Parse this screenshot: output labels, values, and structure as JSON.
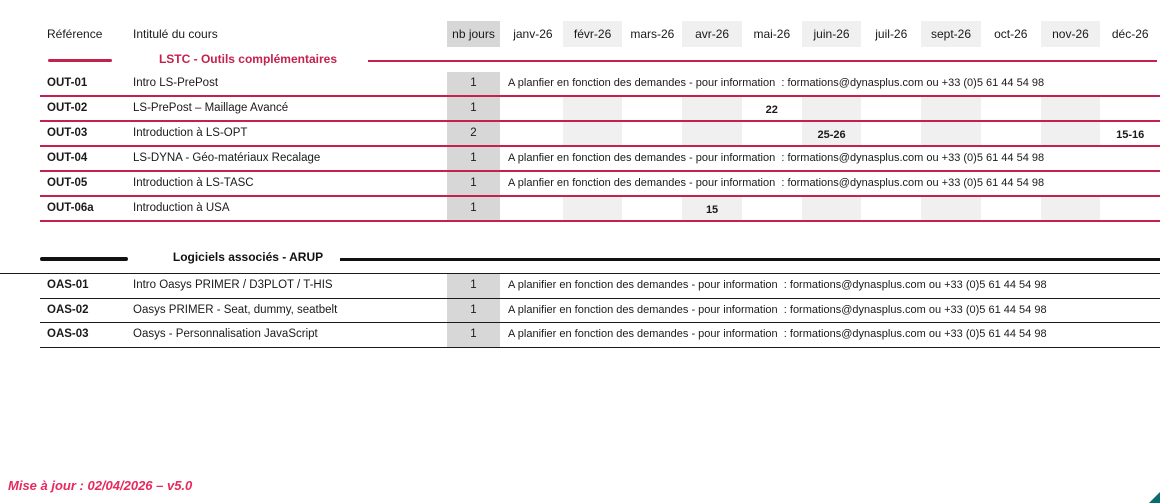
{
  "header": {
    "reference_label": "Référence",
    "course_label": "Intitulé du cours",
    "days_label": "nb jours",
    "months": [
      "janv-26",
      "févr-26",
      "mars-26",
      "avr-26",
      "mai-26",
      "juin-26",
      "juil-26",
      "sept-26",
      "oct-26",
      "nov-26",
      "déc-26"
    ]
  },
  "sections": [
    {
      "id": "lstc",
      "title": "LSTC - Outils complémentaires",
      "theme": "red",
      "rows": [
        {
          "ref": "OUT-01",
          "course": "Intro LS-PrePost",
          "days": "1",
          "info": "A planfier en fonction des demandes - pour information  : formations@dynasplus.com ou +33 (0)5 61 44 54 98"
        },
        {
          "ref": "OUT-02",
          "course": "LS-PrePost – Maillage Avancé",
          "days": "1",
          "dates": {
            "mai-26": "22"
          }
        },
        {
          "ref": "OUT-03",
          "course": "Introduction à LS-OPT",
          "days": "2",
          "dates": {
            "juin-26": "25-26",
            "déc-26": "15-16"
          }
        },
        {
          "ref": "OUT-04",
          "course": "LS-DYNA - Géo-matériaux Recalage",
          "days": "1",
          "info": "A planfier en fonction des demandes - pour information  : formations@dynasplus.com ou +33 (0)5 61 44 54 98"
        },
        {
          "ref": "OUT-05",
          "course": "Introduction à LS-TASC",
          "days": "1",
          "info": "A planfier en fonction des demandes - pour information  : formations@dynasplus.com ou +33 (0)5 61 44 54 98"
        },
        {
          "ref": "OUT-06a",
          "course": "Introduction à USA",
          "days": "1",
          "dates": {
            "avr-26": "15"
          }
        }
      ]
    },
    {
      "id": "arup",
      "title": "Logiciels associés - ARUP",
      "theme": "black",
      "rows": [
        {
          "ref": "OAS-01",
          "course": "Intro Oasys PRIMER / D3PLOT / T-HIS",
          "days": "1",
          "info": "A planifier en fonction des demandes - pour information  : formations@dynasplus.com ou +33 (0)5 61 44 54 98"
        },
        {
          "ref": "OAS-02",
          "course": "Oasys PRIMER - Seat, dummy, seatbelt",
          "days": "1",
          "info": "A planifier en fonction des demandes - pour information  : formations@dynasplus.com ou +33 (0)5 61 44 54 98"
        },
        {
          "ref": "OAS-03",
          "course": "Oasys - Personnalisation JavaScript",
          "days": "1",
          "info": "A planifier en fonction des demandes - pour information  : formations@dynasplus.com ou +33 (0)5 61 44 54 98"
        }
      ]
    }
  ],
  "footer": {
    "update_note": "Mise à jour : 02/04/2026 – v5.0"
  },
  "colors": {
    "accent_red": "#C4214D",
    "footer_pink": "#E62A5F",
    "stripe_gray": "#F0F0F0",
    "days_gray": "#D7D7D7",
    "corner_teal": "#0B6B70",
    "text": "#1a1a1a"
  }
}
